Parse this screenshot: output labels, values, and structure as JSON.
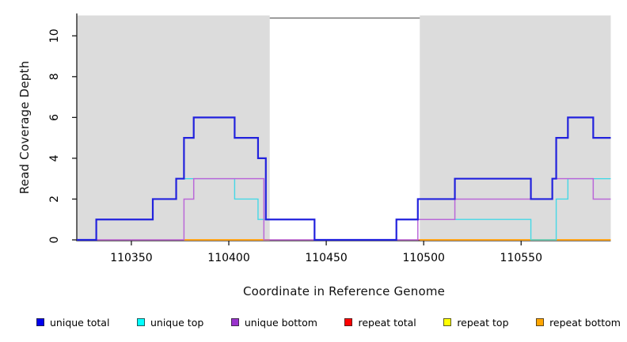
{
  "chart_data": {
    "type": "line",
    "step": "post",
    "title": "",
    "xlabel": "Coordinate in Reference Genome",
    "ylabel": "Read Coverage Depth",
    "xlim": [
      110322,
      110596
    ],
    "ylim": [
      0,
      11
    ],
    "grid": false,
    "legend_position": "bottom",
    "x_ticks": [
      110350,
      110400,
      110450,
      110500,
      110550
    ],
    "y_ticks": [
      0,
      2,
      4,
      6,
      8,
      10
    ],
    "panel_background": "#ffffff",
    "shaded_region_color": "#dcdcdc",
    "shaded_regions": [
      {
        "x0": 110322,
        "x1": 110421
      },
      {
        "x0": 110498,
        "x1": 110596
      }
    ],
    "gap_border": {
      "x0": 110421,
      "x1": 110498,
      "color": "#6f6f6f"
    },
    "axis_color": "#1a1a1a",
    "series": [
      {
        "name": "unique total",
        "color": "#2222DD",
        "legend_color": "#0000EE",
        "width": 2.2,
        "z": 6,
        "segments": [
          [
            [
              110322,
              0
            ],
            [
              110332,
              1
            ],
            [
              110361,
              2
            ],
            [
              110373,
              3
            ],
            [
              110377,
              5
            ],
            [
              110382,
              6
            ],
            [
              110403,
              5
            ],
            [
              110415,
              4
            ],
            [
              110419,
              1
            ],
            [
              110444,
              0
            ],
            [
              110486,
              1
            ],
            [
              110497,
              2
            ],
            [
              110516,
              3
            ],
            [
              110555,
              2
            ],
            [
              110566,
              3
            ],
            [
              110568,
              5
            ],
            [
              110574,
              6
            ],
            [
              110587,
              5
            ],
            [
              110596,
              5
            ]
          ]
        ]
      },
      {
        "name": "unique top",
        "color": "#45D8E6",
        "legend_color": "#00FFFF",
        "width": 1.4,
        "z": 4,
        "segments": [
          [
            [
              110322,
              0
            ],
            [
              110332,
              1
            ],
            [
              110361,
              2
            ],
            [
              110373,
              3
            ],
            [
              110403,
              2
            ],
            [
              110415,
              1
            ],
            [
              110444,
              0
            ],
            [
              110486,
              1
            ],
            [
              110555,
              0
            ],
            [
              110568,
              2
            ],
            [
              110574,
              3
            ],
            [
              110596,
              3
            ]
          ]
        ]
      },
      {
        "name": "unique bottom",
        "color": "#BA68D8",
        "legend_color": "#9932CC",
        "width": 1.5,
        "z": 5,
        "segments": [
          [
            [
              110322,
              0
            ],
            [
              110377,
              2
            ],
            [
              110382,
              3
            ],
            [
              110418,
              0
            ],
            [
              110497,
              1
            ],
            [
              110516,
              2
            ],
            [
              110566,
              3
            ],
            [
              110587,
              2
            ],
            [
              110596,
              2
            ]
          ]
        ]
      },
      {
        "name": "repeat total",
        "color": "#E24F63",
        "legend_color": "#FF0000",
        "width": 1.3,
        "z": 2,
        "segments": [
          [
            [
              110322,
              0
            ],
            [
              110596,
              0
            ]
          ]
        ]
      },
      {
        "name": "repeat top",
        "color": "#FFE800",
        "legend_color": "#FFFF00",
        "width": 1.1,
        "z": 1,
        "segments": [
          [
            [
              110322,
              0
            ],
            [
              110596,
              0
            ]
          ]
        ]
      },
      {
        "name": "repeat bottom",
        "color": "#FFA319",
        "legend_color": "#FFA500",
        "width": 2,
        "z": 3,
        "segments": [
          [
            [
              110377,
              0
            ],
            [
              110421,
              0
            ]
          ],
          [
            [
              110498,
              0
            ],
            [
              110596,
              0
            ]
          ]
        ]
      }
    ]
  },
  "legend": {
    "items": [
      {
        "label": "unique total",
        "color": "#0000EE"
      },
      {
        "label": "unique top",
        "color": "#00FFFF"
      },
      {
        "label": "unique bottom",
        "color": "#9932CC"
      },
      {
        "label": "repeat total",
        "color": "#FF0000"
      },
      {
        "label": "repeat top",
        "color": "#FFFF00"
      },
      {
        "label": "repeat bottom",
        "color": "#FFA500"
      }
    ]
  }
}
